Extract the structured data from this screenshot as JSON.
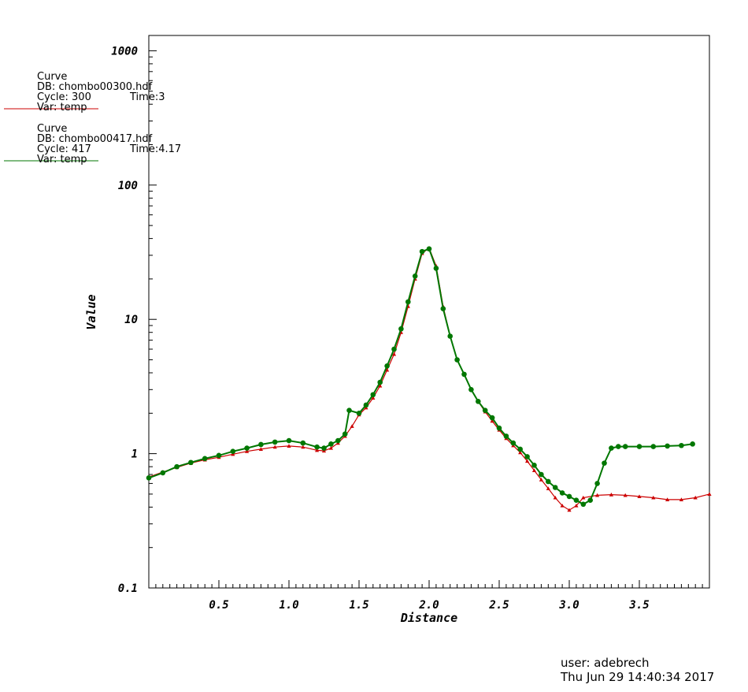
{
  "legend": [
    {
      "header": "Curve",
      "db": "DB: chombo00300.hdf",
      "cycle": "Cycle: 300",
      "time": "Time:3",
      "var": "Var: temp",
      "color": "#cc0000"
    },
    {
      "header": "Curve",
      "db": "DB: chombo00417.hdf",
      "cycle": "Cycle: 417",
      "time": "Time:4.17",
      "var": "Var: temp",
      "color": "#007700"
    }
  ],
  "footer": {
    "user": "user: adebrech",
    "date": "Thu Jun 29 14:40:34 2017"
  },
  "chart_data": {
    "type": "line",
    "title": "",
    "xlabel": "Distance",
    "ylabel": "Value",
    "xlim": [
      0.0,
      4.0
    ],
    "ylim": [
      0.1,
      1300
    ],
    "yscale": "log",
    "grid": false,
    "legend_position": "top-left",
    "xticks": [
      0.5,
      1.0,
      1.5,
      2.0,
      2.5,
      3.0,
      3.5
    ],
    "xtick_labels": [
      "0.5",
      "1.0",
      "1.5",
      "2.0",
      "2.5",
      "3.0",
      "3.5"
    ],
    "yticks": [
      0.1,
      1,
      10,
      100,
      1000
    ],
    "ytick_labels": [
      "0.1",
      "1",
      "10",
      "100",
      "1000"
    ],
    "series": [
      {
        "name": "chombo00300.hdf",
        "color": "#cc0000",
        "marker": "triangle",
        "x": [
          0.0,
          0.1,
          0.2,
          0.3,
          0.4,
          0.5,
          0.6,
          0.7,
          0.8,
          0.9,
          1.0,
          1.1,
          1.2,
          1.25,
          1.3,
          1.35,
          1.4,
          1.45,
          1.5,
          1.55,
          1.6,
          1.65,
          1.7,
          1.75,
          1.8,
          1.85,
          1.9,
          1.95,
          2.0,
          2.05,
          2.1,
          2.15,
          2.2,
          2.25,
          2.3,
          2.35,
          2.4,
          2.45,
          2.5,
          2.55,
          2.6,
          2.65,
          2.7,
          2.75,
          2.8,
          2.85,
          2.9,
          2.95,
          3.0,
          3.05,
          3.1,
          3.2,
          3.3,
          3.4,
          3.5,
          3.6,
          3.7,
          3.8,
          3.9,
          4.0
        ],
        "y": [
          0.67,
          0.73,
          0.79,
          0.85,
          0.9,
          0.94,
          0.99,
          1.04,
          1.08,
          1.12,
          1.14,
          1.12,
          1.06,
          1.05,
          1.1,
          1.2,
          1.35,
          1.6,
          1.95,
          2.2,
          2.6,
          3.2,
          4.2,
          5.5,
          8.0,
          12.5,
          20,
          31,
          34,
          25,
          12.5,
          7.5,
          5.0,
          3.9,
          3.0,
          2.45,
          2.05,
          1.75,
          1.5,
          1.3,
          1.15,
          1.02,
          0.88,
          0.75,
          0.64,
          0.55,
          0.47,
          0.41,
          0.38,
          0.41,
          0.47,
          0.49,
          0.495,
          0.49,
          0.48,
          0.47,
          0.455,
          0.455,
          0.47,
          0.5
        ]
      },
      {
        "name": "chombo00417.hdf",
        "color": "#007700",
        "marker": "circle",
        "x": [
          0.0,
          0.1,
          0.2,
          0.3,
          0.4,
          0.5,
          0.6,
          0.7,
          0.8,
          0.9,
          1.0,
          1.1,
          1.2,
          1.25,
          1.3,
          1.35,
          1.4,
          1.43,
          1.5,
          1.55,
          1.6,
          1.65,
          1.7,
          1.75,
          1.8,
          1.85,
          1.9,
          1.95,
          2.0,
          2.05,
          2.1,
          2.15,
          2.2,
          2.25,
          2.3,
          2.35,
          2.4,
          2.45,
          2.5,
          2.55,
          2.6,
          2.65,
          2.7,
          2.75,
          2.8,
          2.85,
          2.9,
          2.95,
          3.0,
          3.05,
          3.1,
          3.15,
          3.2,
          3.25,
          3.3,
          3.35,
          3.4,
          3.5,
          3.6,
          3.7,
          3.8,
          3.88
        ],
        "y": [
          0.66,
          0.72,
          0.8,
          0.86,
          0.92,
          0.97,
          1.04,
          1.1,
          1.17,
          1.22,
          1.25,
          1.2,
          1.12,
          1.1,
          1.18,
          1.25,
          1.4,
          2.1,
          2.0,
          2.3,
          2.75,
          3.4,
          4.5,
          6.0,
          8.5,
          13.5,
          21,
          32,
          33.5,
          24,
          12,
          7.5,
          5.0,
          3.9,
          3.0,
          2.45,
          2.1,
          1.85,
          1.55,
          1.35,
          1.2,
          1.08,
          0.95,
          0.82,
          0.7,
          0.62,
          0.56,
          0.51,
          0.48,
          0.45,
          0.42,
          0.45,
          0.6,
          0.85,
          1.1,
          1.13,
          1.13,
          1.13,
          1.13,
          1.14,
          1.15,
          1.18
        ]
      }
    ]
  }
}
